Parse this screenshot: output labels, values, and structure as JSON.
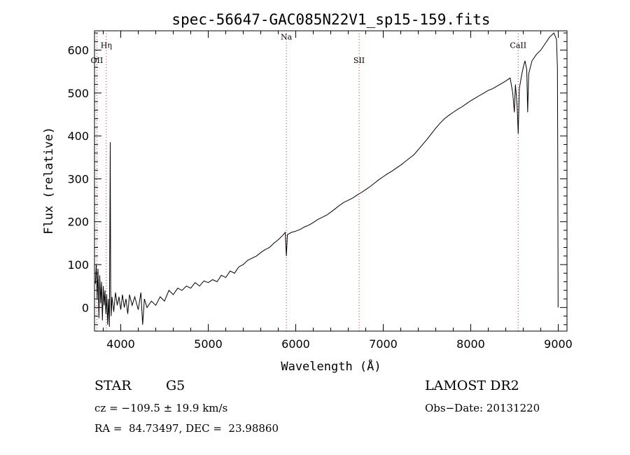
{
  "chart_data": {
    "type": "line",
    "title": "spec-56647-GAC085N22V1_sp15-159.fits",
    "xlabel": "Wavelength (Å)",
    "ylabel": "Flux (relative)",
    "xlim": [
      3700,
      9100
    ],
    "ylim": [
      -55,
      645
    ],
    "x_ticks": [
      4000,
      5000,
      6000,
      7000,
      8000,
      9000
    ],
    "y_ticks": [
      0,
      100,
      200,
      300,
      400,
      500,
      600
    ],
    "x_minor_step": 200,
    "y_minor_step": 20,
    "line_color": "#000000",
    "marker_color": "#cc2222",
    "line_markers": [
      {
        "label": "Hη",
        "x": 3835,
        "label_y": 605
      },
      {
        "label": "OII",
        "x": 3727,
        "label_y": 570
      },
      {
        "label": "Na",
        "x": 5893,
        "label_y": 625
      },
      {
        "label": "SII",
        "x": 6724,
        "label_y": 570
      },
      {
        "label": "CaII",
        "x": 8542,
        "label_y": 605
      }
    ],
    "series": [
      {
        "values": [
          [
            3710,
            55
          ],
          [
            3720,
            100
          ],
          [
            3730,
            20
          ],
          [
            3740,
            90
          ],
          [
            3750,
            -25
          ],
          [
            3760,
            75
          ],
          [
            3770,
            10
          ],
          [
            3780,
            60
          ],
          [
            3790,
            -30
          ],
          [
            3800,
            50
          ],
          [
            3810,
            5
          ],
          [
            3820,
            40
          ],
          [
            3830,
            -15
          ],
          [
            3840,
            30
          ],
          [
            3850,
            -40
          ],
          [
            3860,
            20
          ],
          [
            3870,
            -45
          ],
          [
            3880,
            385
          ],
          [
            3885,
            40
          ],
          [
            3890,
            -20
          ],
          [
            3900,
            25
          ],
          [
            3920,
            -10
          ],
          [
            3940,
            35
          ],
          [
            3960,
            5
          ],
          [
            3980,
            25
          ],
          [
            4000,
            -5
          ],
          [
            4020,
            30
          ],
          [
            4040,
            0
          ],
          [
            4060,
            20
          ],
          [
            4080,
            -15
          ],
          [
            4100,
            30
          ],
          [
            4130,
            5
          ],
          [
            4160,
            25
          ],
          [
            4200,
            -5
          ],
          [
            4230,
            35
          ],
          [
            4250,
            -40
          ],
          [
            4270,
            20
          ],
          [
            4300,
            0
          ],
          [
            4350,
            15
          ],
          [
            4400,
            5
          ],
          [
            4450,
            25
          ],
          [
            4500,
            15
          ],
          [
            4550,
            40
          ],
          [
            4600,
            30
          ],
          [
            4650,
            45
          ],
          [
            4700,
            40
          ],
          [
            4750,
            50
          ],
          [
            4800,
            45
          ],
          [
            4850,
            58
          ],
          [
            4900,
            50
          ],
          [
            4950,
            62
          ],
          [
            5000,
            58
          ],
          [
            5050,
            65
          ],
          [
            5100,
            60
          ],
          [
            5150,
            75
          ],
          [
            5200,
            70
          ],
          [
            5250,
            85
          ],
          [
            5300,
            80
          ],
          [
            5350,
            95
          ],
          [
            5400,
            100
          ],
          [
            5450,
            110
          ],
          [
            5500,
            115
          ],
          [
            5550,
            120
          ],
          [
            5600,
            128
          ],
          [
            5650,
            135
          ],
          [
            5700,
            140
          ],
          [
            5750,
            150
          ],
          [
            5800,
            158
          ],
          [
            5850,
            168
          ],
          [
            5880,
            175
          ],
          [
            5893,
            120
          ],
          [
            5905,
            170
          ],
          [
            5950,
            175
          ],
          [
            6000,
            178
          ],
          [
            6050,
            182
          ],
          [
            6100,
            188
          ],
          [
            6150,
            192
          ],
          [
            6200,
            198
          ],
          [
            6250,
            205
          ],
          [
            6300,
            210
          ],
          [
            6350,
            215
          ],
          [
            6400,
            222
          ],
          [
            6450,
            230
          ],
          [
            6500,
            238
          ],
          [
            6550,
            245
          ],
          [
            6600,
            250
          ],
          [
            6650,
            255
          ],
          [
            6700,
            262
          ],
          [
            6750,
            268
          ],
          [
            6800,
            275
          ],
          [
            6850,
            282
          ],
          [
            6900,
            290
          ],
          [
            6950,
            298
          ],
          [
            7000,
            305
          ],
          [
            7050,
            312
          ],
          [
            7100,
            318
          ],
          [
            7150,
            325
          ],
          [
            7200,
            332
          ],
          [
            7250,
            340
          ],
          [
            7300,
            348
          ],
          [
            7350,
            356
          ],
          [
            7400,
            368
          ],
          [
            7450,
            380
          ],
          [
            7500,
            392
          ],
          [
            7550,
            405
          ],
          [
            7600,
            418
          ],
          [
            7650,
            430
          ],
          [
            7700,
            440
          ],
          [
            7750,
            448
          ],
          [
            7800,
            455
          ],
          [
            7850,
            462
          ],
          [
            7900,
            468
          ],
          [
            7950,
            475
          ],
          [
            8000,
            482
          ],
          [
            8050,
            488
          ],
          [
            8100,
            494
          ],
          [
            8150,
            500
          ],
          [
            8200,
            506
          ],
          [
            8250,
            510
          ],
          [
            8300,
            516
          ],
          [
            8350,
            522
          ],
          [
            8400,
            528
          ],
          [
            8450,
            535
          ],
          [
            8480,
            500
          ],
          [
            8498,
            455
          ],
          [
            8510,
            520
          ],
          [
            8530,
            470
          ],
          [
            8542,
            405
          ],
          [
            8555,
            510
          ],
          [
            8580,
            540
          ],
          [
            8600,
            560
          ],
          [
            8620,
            575
          ],
          [
            8640,
            555
          ],
          [
            8650,
            455
          ],
          [
            8662,
            545
          ],
          [
            8700,
            575
          ],
          [
            8750,
            590
          ],
          [
            8800,
            600
          ],
          [
            8850,
            615
          ],
          [
            8900,
            630
          ],
          [
            8950,
            640
          ],
          [
            8980,
            625
          ],
          [
            8990,
            560
          ],
          [
            8995,
            300
          ],
          [
            8998,
            0
          ]
        ]
      }
    ]
  },
  "info": {
    "object_class": "STAR",
    "subclass": "G5",
    "redshift": "cz = −109.5 ± 19.9 km/s",
    "coords": "RA =  84.73497, DEC =  23.98860",
    "survey": "LAMOST DR2",
    "obs_date": "Obs−Date: 20131220"
  }
}
